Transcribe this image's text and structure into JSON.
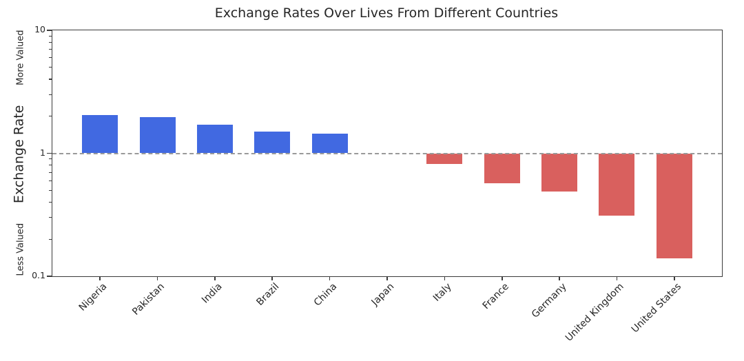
{
  "figure": {
    "background": "#ffffff"
  },
  "chart_data": {
    "type": "bar",
    "title": "Exchange Rates Over Lives From Different Countries",
    "categories": [
      "Nigeria",
      "Pakistan",
      "India",
      "Brazil",
      "China",
      "Japan",
      "Italy",
      "France",
      "Germany",
      "United Kingdom",
      "United States"
    ],
    "values": [
      2.05,
      1.97,
      1.7,
      1.5,
      1.44,
      1.0,
      0.82,
      0.57,
      0.49,
      0.31,
      0.14
    ],
    "yscale": "log",
    "ylim": [
      0.1,
      10
    ],
    "yticks": [
      {
        "label": "10",
        "value": 10
      },
      {
        "label": "1",
        "value": 1
      },
      {
        "label": "0.1",
        "value": 0.1
      }
    ],
    "baseline": {
      "value": 1,
      "color": "#999999",
      "style": "dashed"
    },
    "bar_colors": {
      "above_baseline": "#4169e1",
      "below_baseline": "#d9605e"
    },
    "ylabel": {
      "main": "Exchange Rate",
      "top": "More Valued",
      "bottom": "Less Valued"
    },
    "xlabel": "",
    "grid": false,
    "legend": null,
    "x_tick_rotation_deg": 45
  }
}
